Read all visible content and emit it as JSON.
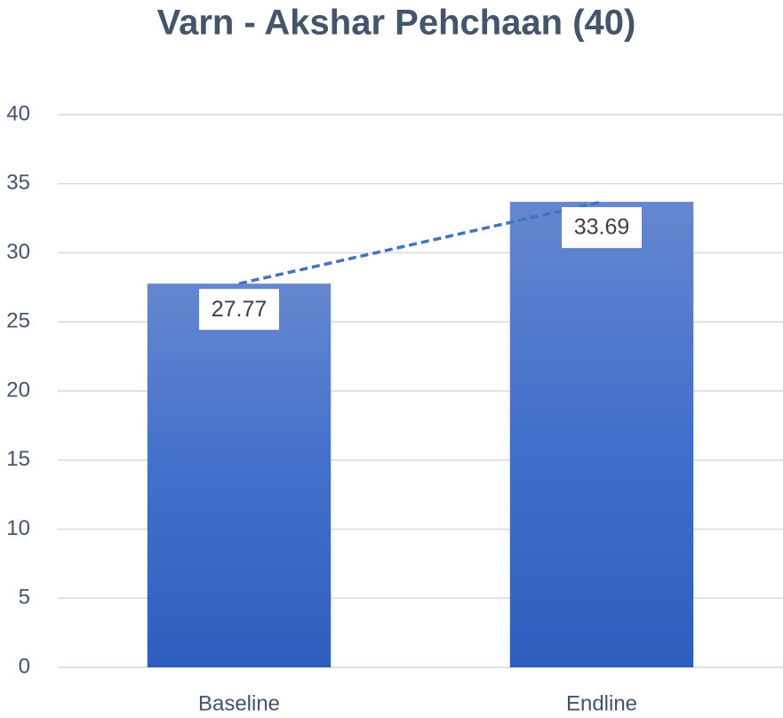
{
  "chart_data": {
    "type": "bar",
    "title": "Varn - Akshar Pehchaan (40)",
    "categories": [
      "Baseline",
      "Endline"
    ],
    "values": [
      27.77,
      33.69
    ],
    "color": "#3f6cc6",
    "trendline": true,
    "trendline_color": "#4472c4",
    "ylim": [
      0,
      40
    ],
    "yticks": [
      0,
      5,
      10,
      15,
      20,
      25,
      30,
      35,
      40
    ],
    "grid": true
  }
}
